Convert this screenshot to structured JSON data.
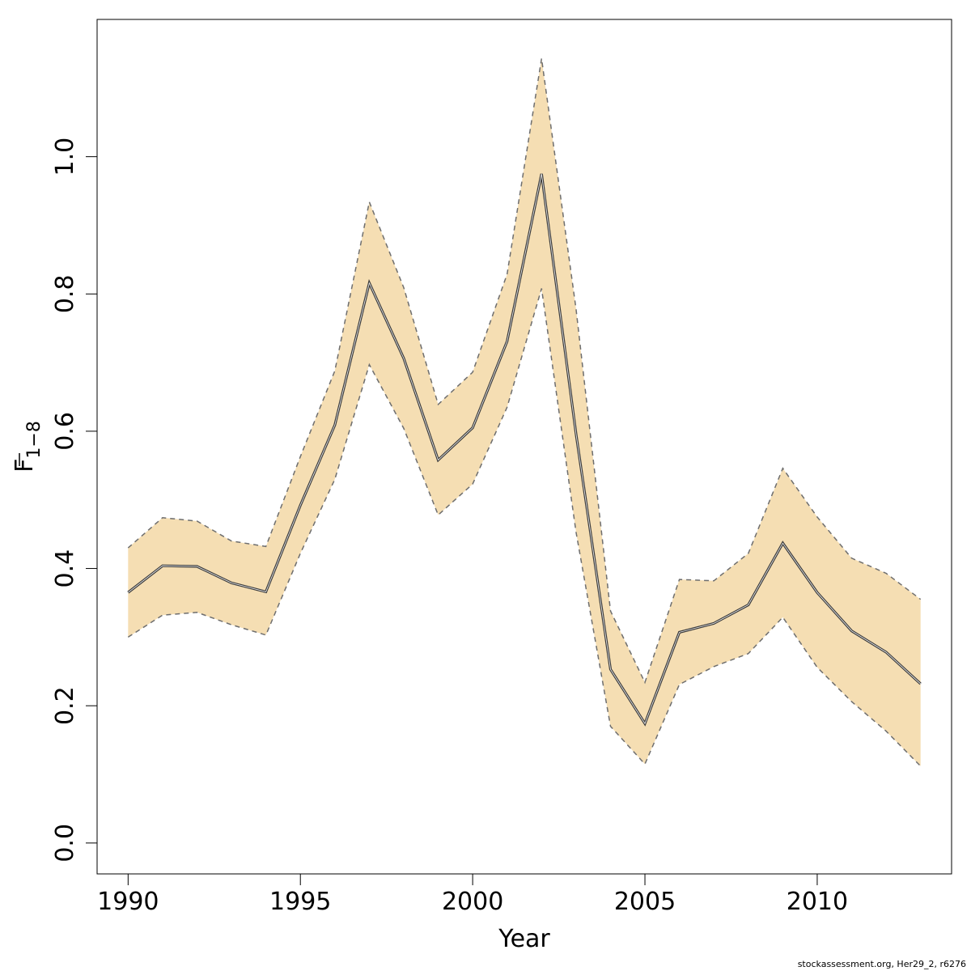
{
  "chart_data": {
    "type": "line",
    "xlabel": "Year",
    "ylabel": {
      "main": "F",
      "sub": "1−8"
    },
    "xlim": [
      1989.1,
      2013.9
    ],
    "ylim": [
      -0.045,
      1.2
    ],
    "xticks": [
      1990,
      1995,
      2000,
      2005,
      2010
    ],
    "xtick_labels": [
      "1990",
      "1995",
      "2000",
      "2005",
      "2010"
    ],
    "yticks": [
      0.0,
      0.2,
      0.4,
      0.6,
      0.8,
      1.0
    ],
    "ytick_labels": [
      "0.0",
      "0.2",
      "0.4",
      "0.6",
      "0.8",
      "1.0"
    ],
    "grid": false,
    "colors": {
      "band": "#f5deb3",
      "bound_line": "#6e6e6e",
      "estimate_line": "#3c3c3c"
    },
    "x": [
      1990,
      1991,
      1992,
      1993,
      1994,
      1995,
      1996,
      1997,
      1998,
      1999,
      2000,
      2001,
      2002,
      2003,
      2004,
      2005,
      2006,
      2007,
      2008,
      2009,
      2010,
      2011,
      2012,
      2013
    ],
    "series": [
      {
        "role": "estimate",
        "values": [
          0.365,
          0.404,
          0.403,
          0.379,
          0.366,
          0.492,
          0.609,
          0.816,
          0.706,
          0.558,
          0.605,
          0.731,
          0.975,
          0.596,
          0.253,
          0.174,
          0.307,
          0.32,
          0.347,
          0.437,
          0.365,
          0.309,
          0.278,
          0.232
        ]
      },
      {
        "role": "upper",
        "values": [
          0.43,
          0.474,
          0.469,
          0.44,
          0.432,
          0.563,
          0.688,
          0.934,
          0.809,
          0.639,
          0.686,
          0.829,
          1.143,
          0.778,
          0.338,
          0.234,
          0.384,
          0.382,
          0.422,
          0.546,
          0.475,
          0.415,
          0.393,
          0.355
        ]
      },
      {
        "role": "lower",
        "values": [
          0.3,
          0.332,
          0.336,
          0.318,
          0.303,
          0.422,
          0.53,
          0.697,
          0.604,
          0.478,
          0.523,
          0.635,
          0.808,
          0.453,
          0.17,
          0.115,
          0.231,
          0.257,
          0.276,
          0.329,
          0.256,
          0.206,
          0.163,
          0.112
        ]
      }
    ]
  },
  "footer": {
    "credit": "stockassessment.org, Her29_2, r6276"
  }
}
